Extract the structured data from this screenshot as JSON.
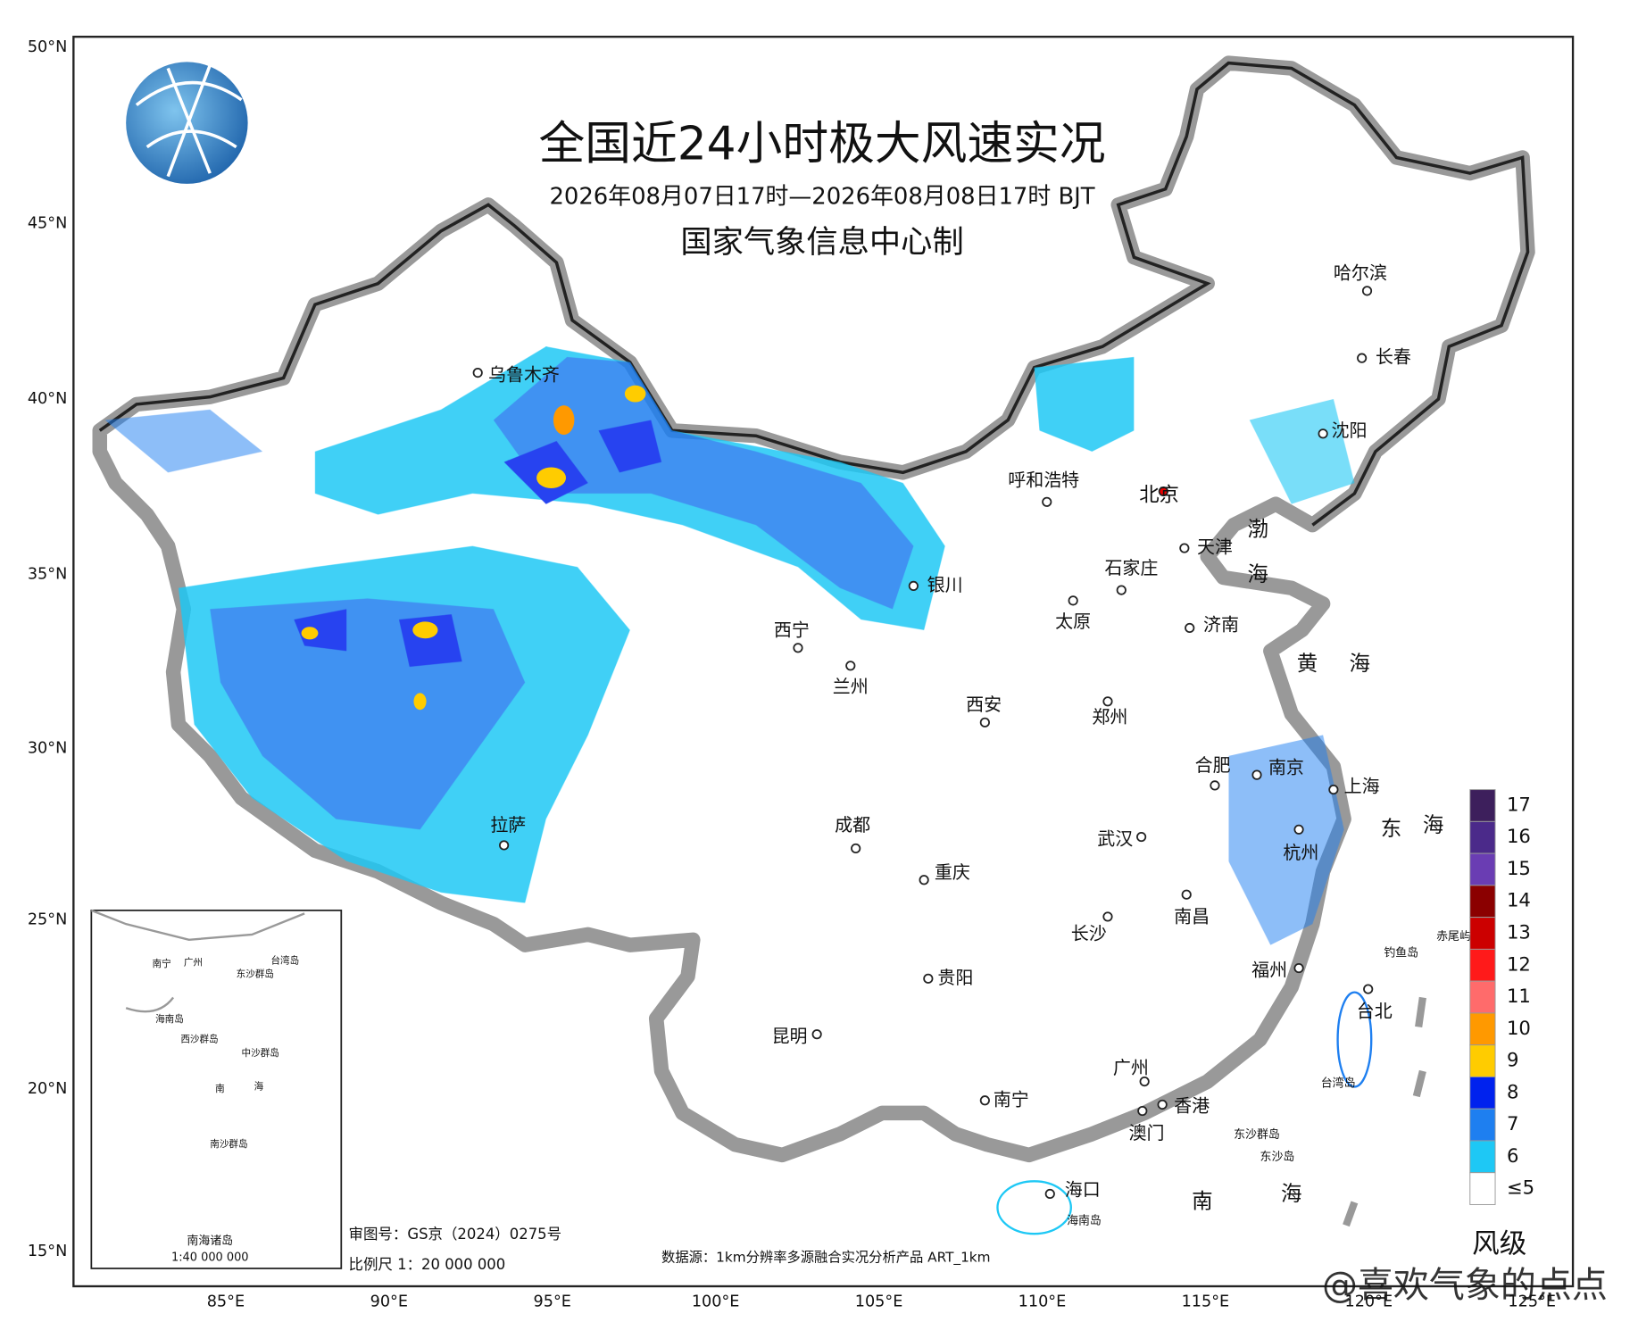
{
  "header": {
    "title": "全国近24小时极大风速实况",
    "subtitle": "2026年08月07日17时—2026年08月08日17时 BJT",
    "producer": "国家气象信息中心制"
  },
  "lat_labels": [
    "50°N",
    "45°N",
    "40°N",
    "35°N",
    "30°N",
    "25°N",
    "20°N",
    "15°N"
  ],
  "lon_labels": [
    "85°E",
    "90°E",
    "95°E",
    "100°E",
    "105°E",
    "110°E",
    "115°E",
    "120°E",
    "125°E"
  ],
  "cities": [
    "乌鲁木齐",
    "呼和浩特",
    "北京",
    "天津",
    "石家庄",
    "银川",
    "太原",
    "济南",
    "西宁",
    "兰州",
    "西安",
    "郑州",
    "合肥",
    "南京",
    "上海",
    "拉萨",
    "成都",
    "武汉",
    "杭州",
    "重庆",
    "长沙",
    "南昌",
    "贵阳",
    "福州",
    "台北",
    "昆明",
    "广州",
    "南宁",
    "香港",
    "澳门",
    "海口",
    "哈尔滨",
    "长春",
    "沈阳"
  ],
  "seas": [
    "渤",
    "海",
    "黄",
    "海",
    "东",
    "海",
    "南",
    "海"
  ],
  "islands": [
    "钓鱼岛",
    "赤尾屿",
    "台湾岛",
    "海南岛",
    "东沙群岛",
    "东沙岛"
  ],
  "inset": {
    "title": "南海诸岛",
    "scale": "1:40 000 000",
    "labels": [
      "南宁",
      "广州",
      "台湾岛",
      "东沙群岛",
      "海南岛",
      "西沙群岛",
      "中沙群岛",
      "南",
      "海",
      "南沙群岛"
    ]
  },
  "legend": {
    "title": "风级",
    "levels": [
      {
        "label": "17",
        "color": "#3d1f5c"
      },
      {
        "label": "16",
        "color": "#4b2a8a"
      },
      {
        "label": "15",
        "color": "#6a3db3"
      },
      {
        "label": "14",
        "color": "#8b0000"
      },
      {
        "label": "13",
        "color": "#cc0000"
      },
      {
        "label": "12",
        "color": "#ff1a1a"
      },
      {
        "label": "11",
        "color": "#ff6b6b"
      },
      {
        "label": "10",
        "color": "#ff9900"
      },
      {
        "label": "9",
        "color": "#ffcc00"
      },
      {
        "label": "8",
        "color": "#0022ee"
      },
      {
        "label": "7",
        "color": "#1e7ff0"
      },
      {
        "label": "6",
        "color": "#1ec8f5"
      },
      {
        "label": "≤5",
        "color": "#ffffff"
      }
    ]
  },
  "footer": {
    "approval": "审图号：GS京（2024）0275号",
    "scale": "比例尺 1：20 000 000",
    "source": "数据源：1km分辨率多源融合实况分析产品 ART_1km"
  },
  "watermark": "@喜欢气象的点点"
}
